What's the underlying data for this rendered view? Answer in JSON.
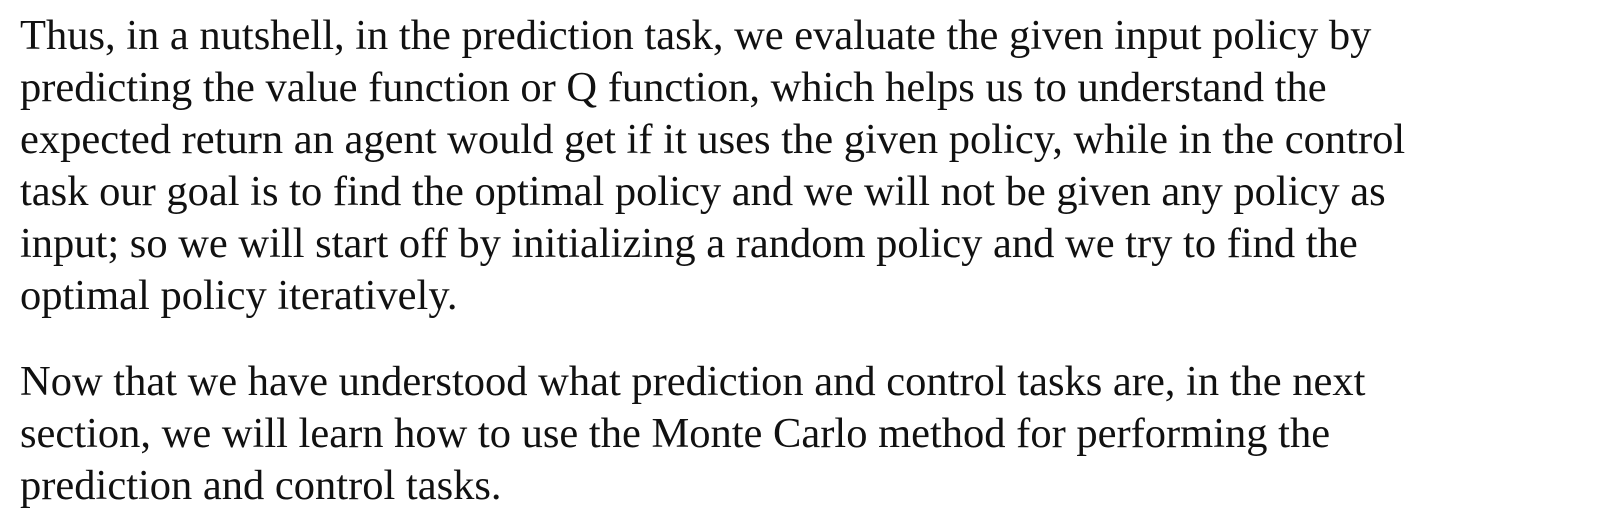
{
  "paragraphs": [
    {
      "lines": [
        "Thus, in a nutshell, in the prediction task, we evaluate the given input policy by",
        "predicting the value function or Q function, which helps us to understand the",
        "expected return an agent would get if it uses the given policy, while in the control",
        "task our goal is to find the optimal policy and we will not be given any policy as",
        "input; so we will start off by initializing a random policy and we try to find the",
        "optimal policy iteratively."
      ]
    },
    {
      "lines": [
        "Now that we have understood what prediction and control tasks are, in the next",
        "section, we will learn how to use the Monte Carlo method for performing the",
        "prediction and control tasks."
      ]
    }
  ]
}
